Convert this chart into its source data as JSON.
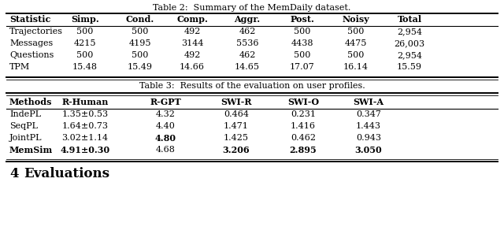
{
  "table2_title": "Table 2:  Summary of the MemDaily dataset.",
  "table2_headers": [
    "Statistic",
    "Simp.",
    "Cond.",
    "Comp.",
    "Aggr.",
    "Post.",
    "Noisy",
    "Total"
  ],
  "table2_rows": [
    [
      "Trajectories",
      "500",
      "500",
      "492",
      "462",
      "500",
      "500",
      "2,954"
    ],
    [
      "Messages",
      "4215",
      "4195",
      "3144",
      "5536",
      "4438",
      "4475",
      "26,003"
    ],
    [
      "Questions",
      "500",
      "500",
      "492",
      "462",
      "500",
      "500",
      "2,954"
    ],
    [
      "TPM",
      "15.48",
      "15.49",
      "14.66",
      "14.65",
      "17.07",
      "16.14",
      "15.59"
    ]
  ],
  "table3_title": "Table 3:  Results of the evaluation on user profiles.",
  "table3_headers": [
    "Methods",
    "R-Human",
    "R-GPT",
    "SWI-R",
    "SWI-O",
    "SWI-A"
  ],
  "table3_rows": [
    [
      "IndePL",
      "1.35±0.53",
      "4.32",
      "0.464",
      "0.231",
      "0.347"
    ],
    [
      "SeqPL",
      "1.64±0.73",
      "4.40",
      "1.471",
      "1.416",
      "1.443"
    ],
    [
      "JointPL",
      "3.02±1.14",
      "4.80",
      "1.425",
      "0.462",
      "0.943"
    ],
    [
      "MemSim",
      "4.91±0.30",
      "4.68",
      "3.206",
      "2.895",
      "3.050"
    ]
  ],
  "table3_bold_cells": [
    [
      false,
      false,
      false,
      false,
      false,
      false
    ],
    [
      false,
      false,
      false,
      false,
      false,
      false
    ],
    [
      false,
      false,
      true,
      false,
      false,
      false
    ],
    [
      true,
      true,
      false,
      true,
      true,
      true
    ]
  ],
  "section_label": "4",
  "section_text": "Evaluations",
  "bg_color": "#ffffff",
  "text_color": "#000000",
  "font_size": 8.0,
  "title_font_size": 8.0
}
